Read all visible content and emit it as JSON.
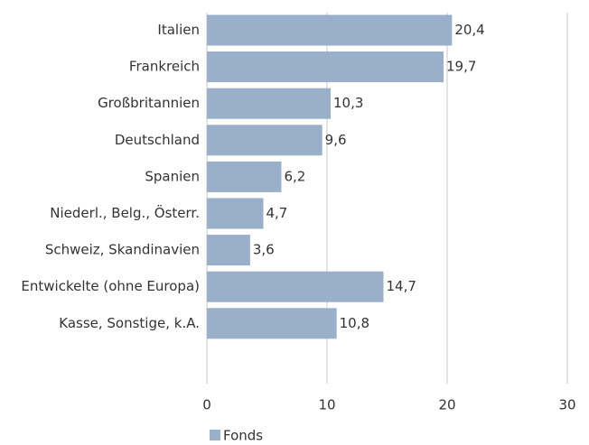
{
  "chart_data": {
    "type": "bar",
    "orientation": "horizontal",
    "categories": [
      "Italien",
      "Frankreich",
      "Großbritannien",
      "Deutschland",
      "Spanien",
      "Niederl., Belg., Österr.",
      "Schweiz, Skandinavien",
      "Entwickelte (ohne Europa)",
      "Kasse, Sonstige, k.A."
    ],
    "series": [
      {
        "name": "Fonds",
        "color": "#9aafc9",
        "values": [
          20.4,
          19.7,
          10.3,
          9.6,
          6.2,
          4.7,
          3.6,
          14.7,
          10.8
        ],
        "value_labels": [
          "20,4",
          "19,7",
          "10,3",
          "9,6",
          "6,2",
          "4,7",
          "3,6",
          "14,7",
          "10,8"
        ]
      }
    ],
    "xlim": [
      0,
      30
    ],
    "xticks": [
      0,
      10,
      20,
      30
    ],
    "grid": true
  }
}
